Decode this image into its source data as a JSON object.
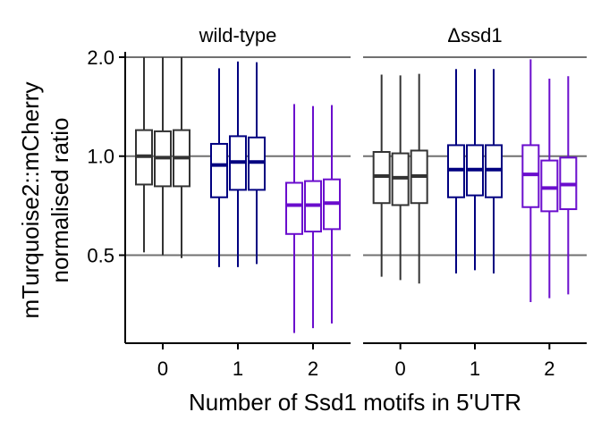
{
  "chart_data": {
    "type": "boxplot",
    "ylabel_lines": [
      "mTurquoise2::mCherry",
      "normalised ratio"
    ],
    "xlabel": "Number of Ssd1 motifs in 5'UTR",
    "y_scale": "log2",
    "ylim": [
      0.27,
      2.05
    ],
    "yticks": [
      0.5,
      1.0,
      2.0
    ],
    "ytick_labels": [
      "0.5",
      "1.0",
      "2.0"
    ],
    "hlines": [
      0.5,
      1.0,
      2.0
    ],
    "categories": [
      "0",
      "1",
      "2"
    ],
    "category_colors": [
      "#333333",
      "#000080",
      "#6A0DCD"
    ],
    "panels": [
      {
        "label": "wild-type",
        "groups": [
          {
            "category": "0",
            "boxes": [
              {
                "low": 0.51,
                "q1": 0.82,
                "median": 1.0,
                "q3": 1.2,
                "high": 2.0
              },
              {
                "low": 0.5,
                "q1": 0.81,
                "median": 0.99,
                "q3": 1.19,
                "high": 2.0
              },
              {
                "low": 0.49,
                "q1": 0.81,
                "median": 0.99,
                "q3": 1.2,
                "high": 2.0
              }
            ]
          },
          {
            "category": "1",
            "boxes": [
              {
                "low": 0.46,
                "q1": 0.75,
                "median": 0.94,
                "q3": 1.09,
                "high": 1.85
              },
              {
                "low": 0.46,
                "q1": 0.79,
                "median": 0.96,
                "q3": 1.15,
                "high": 1.94
              },
              {
                "low": 0.47,
                "q1": 0.79,
                "median": 0.96,
                "q3": 1.14,
                "high": 1.93
              }
            ]
          },
          {
            "category": "2",
            "boxes": [
              {
                "low": 0.29,
                "q1": 0.58,
                "median": 0.71,
                "q3": 0.83,
                "high": 1.44
              },
              {
                "low": 0.3,
                "q1": 0.59,
                "median": 0.71,
                "q3": 0.84,
                "high": 1.42
              },
              {
                "low": 0.31,
                "q1": 0.6,
                "median": 0.72,
                "q3": 0.85,
                "high": 1.43
              }
            ]
          }
        ]
      },
      {
        "label": "Δssd1",
        "groups": [
          {
            "category": "0",
            "boxes": [
              {
                "low": 0.43,
                "q1": 0.72,
                "median": 0.87,
                "q3": 1.03,
                "high": 1.77
              },
              {
                "low": 0.42,
                "q1": 0.71,
                "median": 0.86,
                "q3": 1.02,
                "high": 1.76
              },
              {
                "low": 0.41,
                "q1": 0.72,
                "median": 0.87,
                "q3": 1.04,
                "high": 1.78
              }
            ]
          },
          {
            "category": "1",
            "boxes": [
              {
                "low": 0.44,
                "q1": 0.75,
                "median": 0.91,
                "q3": 1.08,
                "high": 1.84
              },
              {
                "low": 0.45,
                "q1": 0.76,
                "median": 0.91,
                "q3": 1.08,
                "high": 1.84
              },
              {
                "low": 0.44,
                "q1": 0.75,
                "median": 0.91,
                "q3": 1.08,
                "high": 1.84
              }
            ]
          },
          {
            "category": "2",
            "boxes": [
              {
                "low": 0.36,
                "q1": 0.7,
                "median": 0.88,
                "q3": 1.08,
                "high": 1.97
              },
              {
                "low": 0.37,
                "q1": 0.68,
                "median": 0.8,
                "q3": 0.97,
                "high": 1.72
              },
              {
                "low": 0.38,
                "q1": 0.69,
                "median": 0.82,
                "q3": 0.99,
                "high": 1.75
              }
            ]
          }
        ]
      }
    ]
  }
}
